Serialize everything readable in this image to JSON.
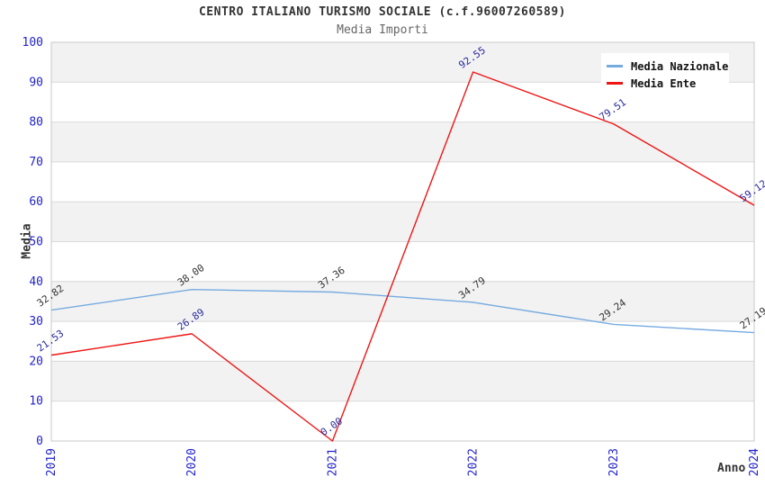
{
  "colors": {
    "tick_label": "#2222cc",
    "band_gray": "#f2f2f2",
    "band_white": "#ffffff",
    "gridline": "#d9d9d9",
    "plot_border": "#c9c9c9",
    "title_text": "#333333",
    "subtitle_text": "#666666",
    "legend_text": "#111111"
  },
  "chart_data": {
    "type": "line",
    "title": "CENTRO ITALIANO TURISMO SOCIALE (c.f.96007260589)",
    "subtitle": "Media Importi",
    "xlabel": "Anno",
    "ylabel": "Media",
    "categories": [
      "2019",
      "2020",
      "2021",
      "2022",
      "2023",
      "2024"
    ],
    "series": [
      {
        "name": "Media Nazionale",
        "color": "#76abe0",
        "label_color": "#333333",
        "values": [
          32.82,
          38.0,
          37.36,
          34.79,
          29.24,
          27.19
        ]
      },
      {
        "name": "Media Ente",
        "color": "#ee1515",
        "label_color": "#2a2aa0",
        "values": [
          21.53,
          26.89,
          0.0,
          92.55,
          79.51,
          59.12
        ]
      }
    ],
    "ylim": [
      0,
      100
    ],
    "ytick_step": 10,
    "value_label_decimals": 2,
    "legend_position": "top-right",
    "grid": "horizontal-bands",
    "x_tick_rotation": -90,
    "value_label_rotation": -35
  }
}
